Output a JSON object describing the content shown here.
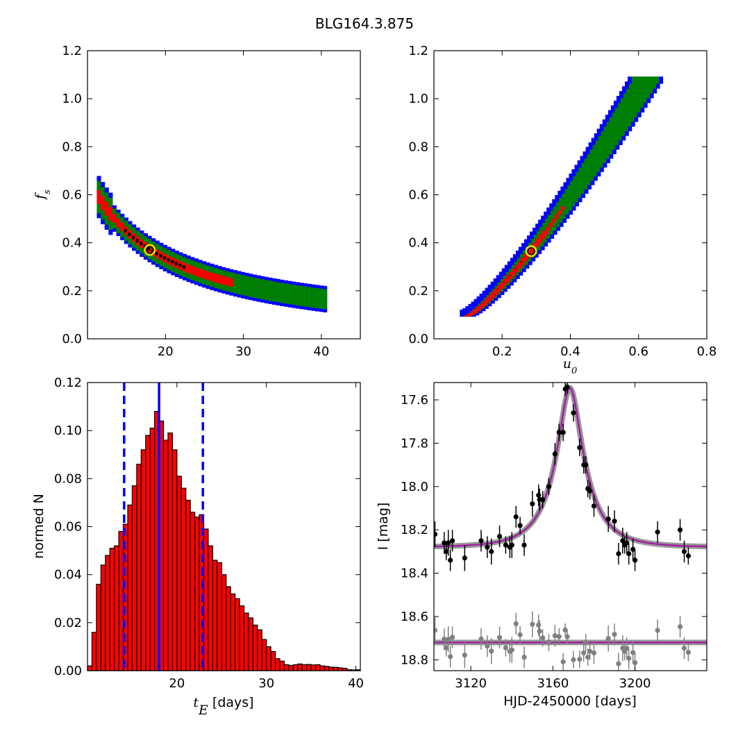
{
  "figure": {
    "title": "BLG164.3.875"
  },
  "chart_data": [
    {
      "id": "fs_vs_tE",
      "type": "heatmap",
      "xlim": [
        10,
        45
      ],
      "ylim": [
        0.0,
        1.2
      ],
      "xticks": [
        20,
        30,
        40
      ],
      "yticks": [
        "0.0",
        "0.2",
        "0.4",
        "0.6",
        "0.8",
        "1.0",
        "1.2"
      ],
      "xlabel": "",
      "ylabel": "f_s",
      "band": {
        "x_from": 11.2,
        "x_to": 40.5,
        "curve_a": 6.6,
        "curve_b": 0.001,
        "blue_half_width": 0.055,
        "green_half_width": 0.042,
        "red_half_width": 0.018,
        "black_x_range": [
          14.5,
          22.5
        ]
      },
      "best_fit": {
        "x": 18.0,
        "y": 0.37
      },
      "colors": {
        "outer": "#0000ff",
        "middle": "#008000",
        "inner": "#ff0000",
        "core": "#000000",
        "marker": "#e8d800"
      }
    },
    {
      "id": "fs_vs_u0",
      "type": "heatmap",
      "xlim": [
        0.0,
        0.8
      ],
      "ylim": [
        0.0,
        1.2
      ],
      "xticks": [
        "0.2",
        "0.4",
        "0.6",
        "0.8"
      ],
      "yticks": [
        "0.0",
        "0.2",
        "0.4",
        "0.6",
        "0.8",
        "1.0",
        "1.2"
      ],
      "xlabel": "u_0",
      "ylabel": "",
      "band": {
        "x_from": 0.1,
        "x_to": 0.62,
        "y_from": 0.11,
        "y_to": 1.08
      },
      "best_fit": {
        "x": 0.285,
        "y": 0.365
      },
      "colors": {
        "outer": "#0000ff",
        "middle": "#008000",
        "inner": "#ff0000",
        "core": "#000000",
        "marker": "#e8d800"
      }
    },
    {
      "id": "tE_histogram",
      "type": "bar",
      "xlim": [
        10,
        40.5
      ],
      "ylim": [
        0.0,
        0.12
      ],
      "xticks": [
        20,
        30,
        40
      ],
      "yticks": [
        "0.00",
        "0.02",
        "0.04",
        "0.06",
        "0.08",
        "0.10",
        "0.12"
      ],
      "xlabel": "t_E [days]",
      "ylabel": "normed N",
      "bin_start": 10.0,
      "bin_width": 0.5,
      "values": [
        0.002,
        0.016,
        0.036,
        0.044,
        0.048,
        0.051,
        0.052,
        0.058,
        0.061,
        0.069,
        0.077,
        0.086,
        0.092,
        0.098,
        0.101,
        0.108,
        0.104,
        0.096,
        0.099,
        0.092,
        0.081,
        0.076,
        0.071,
        0.066,
        0.064,
        0.065,
        0.059,
        0.052,
        0.046,
        0.045,
        0.04,
        0.035,
        0.032,
        0.03,
        0.027,
        0.024,
        0.022,
        0.019,
        0.017,
        0.013,
        0.01,
        0.008,
        0.005,
        0.004,
        0.0025,
        0.0022,
        0.0025,
        0.0028,
        0.0025,
        0.0026,
        0.0024,
        0.0025,
        0.002,
        0.0018,
        0.0015,
        0.0014,
        0.0012,
        0.001,
        0.0004,
        0.0003,
        0.0004
      ],
      "vlines": {
        "median": 18.0,
        "lower": 14.1,
        "upper": 22.9
      },
      "colors": {
        "bars": "#ff0000",
        "edges": "#000000",
        "lines": "#0000ff"
      }
    },
    {
      "id": "light_curve",
      "type": "scatter",
      "xlim": [
        3102,
        3235
      ],
      "ylim": [
        18.85,
        17.52
      ],
      "xticks": [
        3120,
        3160,
        3200
      ],
      "yticks": [
        "17.6",
        "17.8",
        "18.0",
        "18.2",
        "18.4",
        "18.6",
        "18.8"
      ],
      "xlabel": "HJD-2450000 [days]",
      "ylabel": "I [mag]",
      "model": {
        "t0": 3168.3,
        "u0": 0.285,
        "tE": 18.0,
        "fs": 0.37,
        "base_mag": 18.28
      },
      "residual_offset": 18.72,
      "points": [
        [
          3102.5,
          18.22,
          0.06
        ],
        [
          3107,
          18.26,
          0.05
        ],
        [
          3108,
          18.3,
          0.04
        ],
        [
          3109,
          18.26,
          0.06
        ],
        [
          3110,
          18.34,
          0.05
        ],
        [
          3111,
          18.25,
          0.05
        ],
        [
          3117,
          18.33,
          0.06
        ],
        [
          3125,
          18.25,
          0.05
        ],
        [
          3128,
          18.28,
          0.05
        ],
        [
          3130,
          18.3,
          0.06
        ],
        [
          3134,
          18.23,
          0.05
        ],
        [
          3137,
          18.27,
          0.04
        ],
        [
          3139,
          18.28,
          0.05
        ],
        [
          3140,
          18.27,
          0.06
        ],
        [
          3142,
          18.14,
          0.05
        ],
        [
          3144,
          18.18,
          0.04
        ],
        [
          3146,
          18.27,
          0.05
        ],
        [
          3150,
          18.08,
          0.06
        ],
        [
          3153,
          18.04,
          0.05
        ],
        [
          3153.5,
          18.06,
          0.05
        ],
        [
          3155,
          18.06,
          0.04
        ],
        [
          3158,
          18.0,
          0.04
        ],
        [
          3161,
          17.85,
          0.05
        ],
        [
          3163,
          17.75,
          0.04
        ],
        [
          3165,
          17.75,
          0.04
        ],
        [
          3166,
          17.55,
          0.03
        ],
        [
          3167,
          17.54,
          0.03
        ],
        [
          3170,
          17.66,
          0.04
        ],
        [
          3173,
          17.82,
          0.04
        ],
        [
          3175,
          17.9,
          0.04
        ],
        [
          3176,
          17.9,
          0.04
        ],
        [
          3177,
          18.01,
          0.04
        ],
        [
          3178,
          18.02,
          0.04
        ],
        [
          3180,
          18.09,
          0.05
        ],
        [
          3187,
          18.15,
          0.06
        ],
        [
          3190,
          18.16,
          0.05
        ],
        [
          3192,
          18.31,
          0.05
        ],
        [
          3194,
          18.25,
          0.06
        ],
        [
          3195,
          18.27,
          0.04
        ],
        [
          3196,
          18.26,
          0.05
        ],
        [
          3197,
          18.31,
          0.05
        ],
        [
          3199,
          18.29,
          0.05
        ],
        [
          3200,
          18.34,
          0.05
        ],
        [
          3211,
          18.21,
          0.05
        ],
        [
          3222,
          18.2,
          0.05
        ],
        [
          3224,
          18.3,
          0.05
        ],
        [
          3226,
          18.32,
          0.04
        ]
      ],
      "colors": {
        "data": "#000000",
        "residuals": "#808080",
        "model": "#a020a0",
        "model_band": "#808080"
      }
    }
  ]
}
